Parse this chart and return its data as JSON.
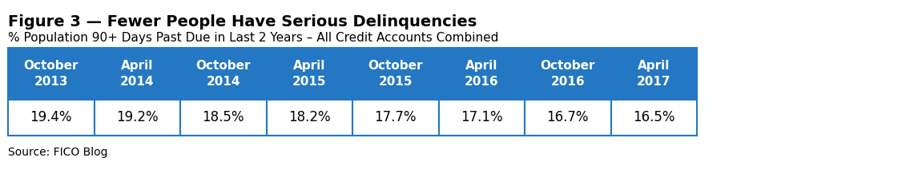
{
  "title": "Figure 3 — Fewer People Have Serious Delinquencies",
  "subtitle": "% Population 90+ Days Past Due in Last 2 Years – All Credit Accounts Combined",
  "source": "Source: FICO Blog",
  "header_row": [
    "October\n2013",
    "April\n2014",
    "October\n2014",
    "April\n2015",
    "October\n2015",
    "April\n2016",
    "October\n2016",
    "April\n2017"
  ],
  "data_row": [
    "19.4%",
    "19.2%",
    "18.5%",
    "18.2%",
    "17.7%",
    "17.1%",
    "16.7%",
    "16.5%"
  ],
  "header_bg_color": "#2477C3",
  "header_text_color": "#FFFFFF",
  "data_bg_color": "#FFFFFF",
  "data_text_color": "#000000",
  "table_border_color": "#2477C3",
  "background_color": "#FFFFFF",
  "title_fontsize": 14,
  "subtitle_fontsize": 11,
  "source_fontsize": 10,
  "header_fontsize": 11,
  "data_fontsize": 12
}
